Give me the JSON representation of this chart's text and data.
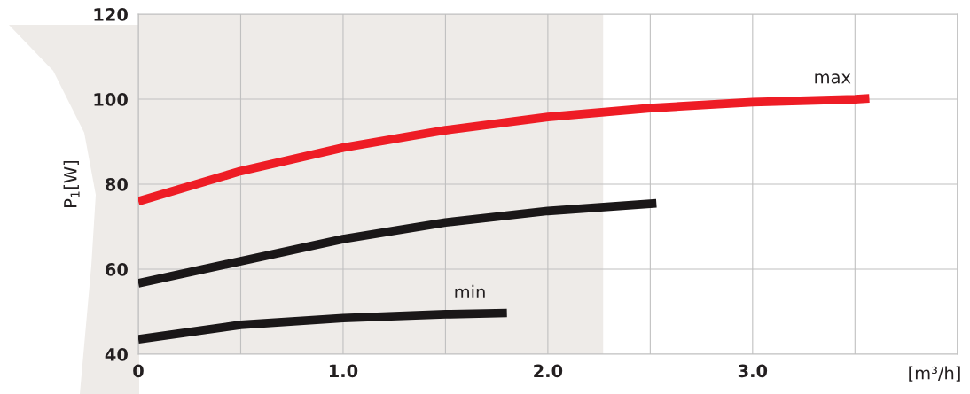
{
  "chart_data": {
    "type": "line",
    "ylabel": "P$_{1}$[W]",
    "xlabel": "[m³/h]",
    "xlim": [
      0,
      4.0
    ],
    "ylim": [
      40,
      120
    ],
    "xticks": [
      0,
      {
        "value": 0.5,
        "label": null
      },
      {
        "value": 1.0,
        "label": "1.0"
      },
      {
        "value": 1.5,
        "label": null
      },
      {
        "value": 2.0,
        "label": "2.0"
      },
      {
        "value": 2.5,
        "label": null
      },
      {
        "value": 3.0,
        "label": "3.0"
      },
      {
        "value": 3.5,
        "label": null
      },
      {
        "value": 4.0,
        "label": null
      }
    ],
    "yticks": [
      40,
      60,
      80,
      100,
      120
    ],
    "grid": true,
    "marker": "none",
    "line_style": "solid",
    "bands": [
      {
        "axis": "x",
        "from": 0,
        "to": 2.27,
        "color": "#eeebe8"
      }
    ],
    "series": [
      {
        "name": "max",
        "color": "#ee1c25",
        "x": [
          0,
          0.5,
          1.0,
          1.5,
          2.0,
          2.5,
          3.0,
          3.5,
          3.57
        ],
        "values": [
          76.0,
          83.1,
          88.6,
          92.7,
          95.8,
          97.9,
          99.3,
          100.0,
          100.2
        ]
      },
      {
        "color": "#1a1718",
        "x": [
          0,
          0.5,
          1.0,
          1.5,
          2.0,
          2.53
        ],
        "values": [
          56.7,
          61.9,
          67.1,
          71.0,
          73.7,
          75.5
        ]
      },
      {
        "name": "min",
        "color": "#1a1718",
        "x": [
          0,
          0.5,
          1.0,
          1.5,
          1.8
        ],
        "values": [
          43.5,
          46.9,
          48.5,
          49.4,
          49.7
        ]
      }
    ]
  }
}
